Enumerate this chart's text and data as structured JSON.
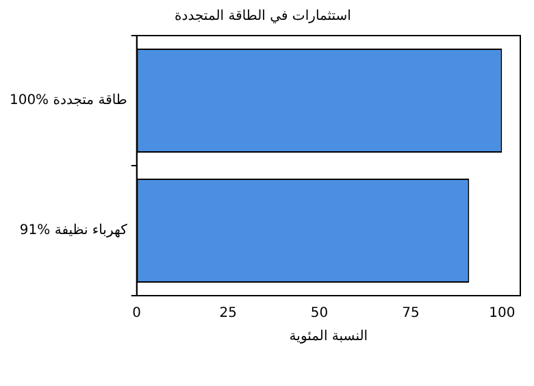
{
  "chart_data": {
    "type": "bar",
    "orientation": "horizontal",
    "title": "استثمارات في الطاقة المتجددة",
    "xlabel": "النسبة المئوية",
    "categories": [
      "100% طاقة متجددة",
      "91% كهرباء نظيفة"
    ],
    "values": [
      100,
      91
    ],
    "color": "#4a8fe2",
    "xlim": [
      0,
      105
    ],
    "xticks": [
      0,
      25,
      50,
      75,
      100
    ],
    "grid": false,
    "legend": false
  }
}
